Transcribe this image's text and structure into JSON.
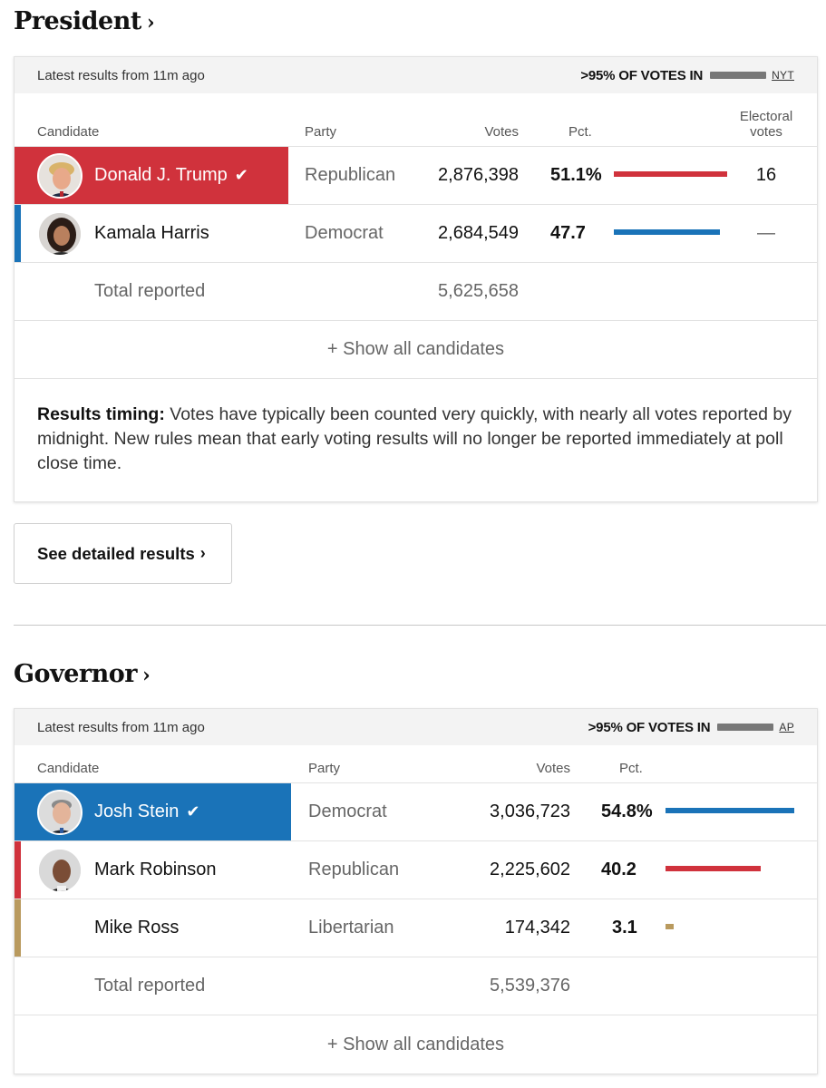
{
  "president": {
    "title": "President",
    "chevron": "›",
    "latest": "Latest results from 11m ago",
    "votes_in": ">95% OF VOTES IN",
    "source": "NYT",
    "headers": {
      "candidate": "Candidate",
      "party": "Party",
      "votes": "Votes",
      "pct": "Pct.",
      "electoral_1": "Electoral",
      "electoral_2": "votes"
    },
    "rows": [
      {
        "name": "Donald J. Trump",
        "check": "✔",
        "party": "Republican",
        "votes": "2,876,398",
        "pct": "51.1%",
        "pct_value": 51.1,
        "electoral": "16"
      },
      {
        "name": "Kamala Harris",
        "party": "Democrat",
        "votes": "2,684,549",
        "pct": "47.7",
        "pct_value": 47.7,
        "electoral": "—"
      }
    ],
    "total_label": "Total reported",
    "total": "5,625,658",
    "show_all": "+ Show all candidates",
    "note_bold": "Results timing:",
    "note_text": " Votes have typically been counted very quickly, with nearly all votes reported by midnight. New rules mean that early voting results will no longer be reported immediately at poll close time."
  },
  "detail_button": {
    "label": "See detailed results",
    "chevron": "›"
  },
  "governor": {
    "title": "Governor",
    "chevron": "›",
    "latest": "Latest results from 11m ago",
    "votes_in": ">95% OF VOTES IN",
    "source": "AP",
    "headers": {
      "candidate": "Candidate",
      "party": "Party",
      "votes": "Votes",
      "pct": "Pct."
    },
    "rows": [
      {
        "name": "Josh Stein",
        "check": "✔",
        "party": "Democrat",
        "votes": "3,036,723",
        "pct": "54.8%",
        "pct_value": 54.8
      },
      {
        "name": "Mark Robinson",
        "party": "Republican",
        "votes": "2,225,602",
        "pct": "40.2",
        "pct_value": 40.2
      },
      {
        "name": "Mike Ross",
        "party": "Libertarian",
        "votes": "174,342",
        "pct": "3.1",
        "pct_value": 3.1
      }
    ],
    "total_label": "Total reported",
    "total": "5,539,376",
    "show_all": "+ Show all candidates"
  },
  "colors": {
    "republican": "#d0323c",
    "democrat": "#1a73b8",
    "libertarian": "#b99a5e"
  }
}
